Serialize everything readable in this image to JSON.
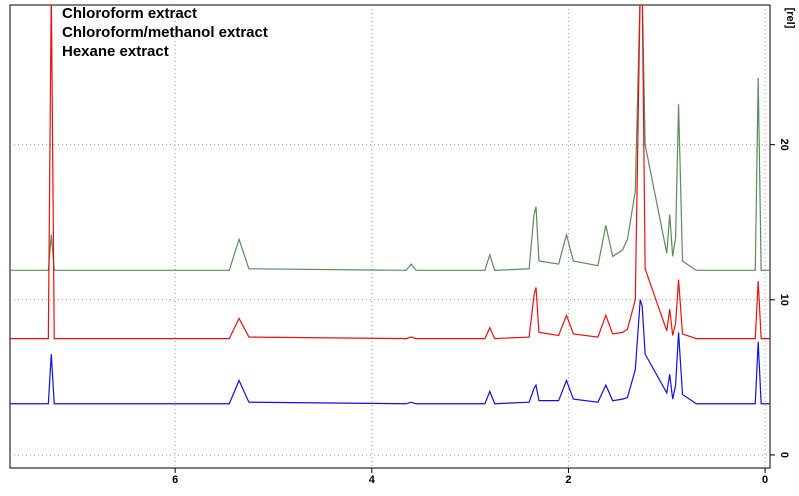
{
  "chart_data": {
    "type": "line",
    "y_label": "[rel]",
    "x": [
      7.68,
      7.29,
      7.26,
      7.23,
      5.45,
      5.35,
      5.25,
      3.65,
      3.6,
      3.55,
      2.85,
      2.8,
      2.75,
      2.4,
      2.35,
      2.33,
      2.3,
      2.1,
      2.02,
      1.95,
      1.7,
      1.62,
      1.55,
      1.45,
      1.4,
      1.32,
      1.27,
      1.25,
      1.22,
      1.0,
      0.97,
      0.94,
      0.91,
      0.88,
      0.84,
      0.7,
      0.1,
      0.07,
      0.04,
      -0.05
    ],
    "series": [
      {
        "name": "Chloroform extract",
        "color": "#5b8c5a",
        "values": [
          11.9,
          11.9,
          14.2,
          11.9,
          11.9,
          13.9,
          12.0,
          11.9,
          12.3,
          11.9,
          11.9,
          12.9,
          11.9,
          12.0,
          15.5,
          16.0,
          12.5,
          12.3,
          14.2,
          12.5,
          12.2,
          14.8,
          12.8,
          13.2,
          13.9,
          17,
          30,
          30,
          20,
          13,
          15.5,
          12.8,
          14,
          22.6,
          12.5,
          11.9,
          11.9,
          24.3,
          11.9,
          11.9
        ]
      },
      {
        "name": "Chloroform/methanol extract",
        "color": "#e81010",
        "values": [
          7.5,
          7.5,
          30,
          7.5,
          7.5,
          8.8,
          7.6,
          7.5,
          7.6,
          7.5,
          7.5,
          8.2,
          7.5,
          7.6,
          10.3,
          10.8,
          7.9,
          7.7,
          9.0,
          7.8,
          7.6,
          9.0,
          7.8,
          7.9,
          8.1,
          10,
          30,
          30,
          12,
          8,
          9.4,
          7.7,
          8.5,
          11.3,
          7.8,
          7.5,
          7.5,
          11.2,
          7.5,
          7.5
        ]
      },
      {
        "name": "Hexane extract",
        "color": "#1010e0",
        "values": [
          3.3,
          3.3,
          6.5,
          3.3,
          3.3,
          4.8,
          3.4,
          3.3,
          3.4,
          3.3,
          3.3,
          4.1,
          3.3,
          3.4,
          4.3,
          4.5,
          3.5,
          3.5,
          4.8,
          3.6,
          3.4,
          4.5,
          3.5,
          3.6,
          3.7,
          5.5,
          10.0,
          9.6,
          6.5,
          4.0,
          5.2,
          3.6,
          4.5,
          7.9,
          3.9,
          3.3,
          3.3,
          7.3,
          3.3,
          3.3
        ]
      }
    ],
    "xlim": [
      7.68,
      -0.05
    ],
    "xticks": [
      6,
      4,
      2,
      0
    ],
    "ylim": [
      -0.84,
      29
    ],
    "yticks": [
      0,
      10,
      20
    ],
    "grid": true,
    "legend": "upper left"
  }
}
